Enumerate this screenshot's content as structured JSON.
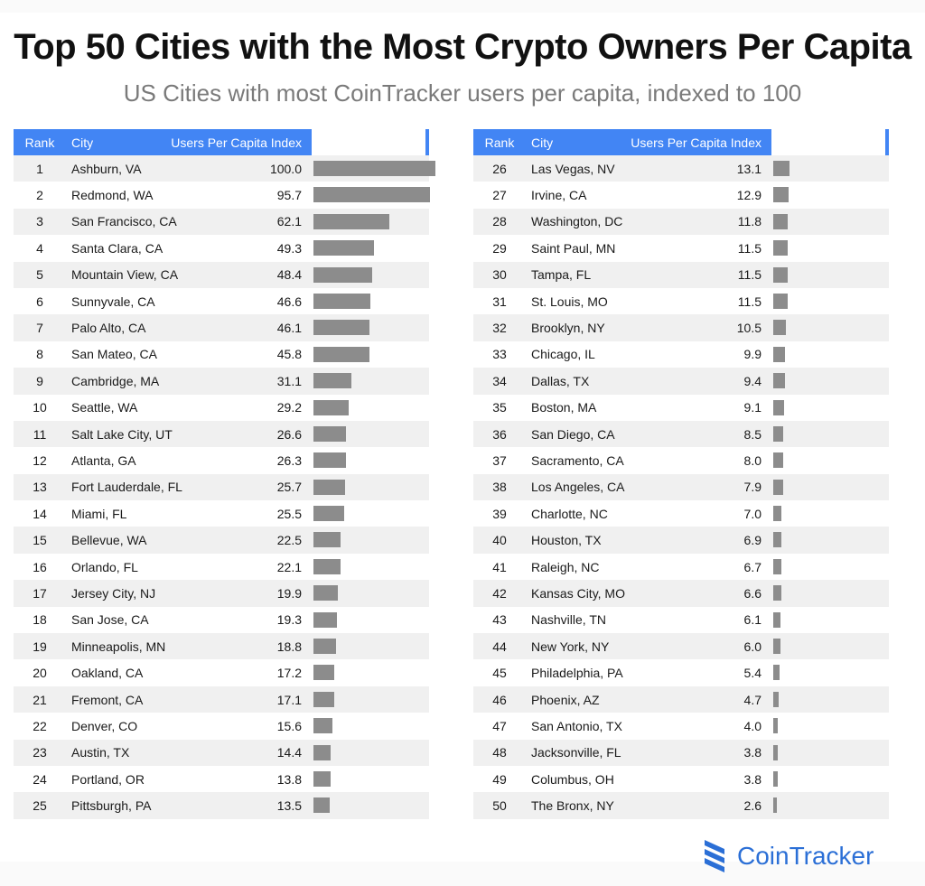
{
  "title": "Top 50 Cities with the Most Crypto Owners Per Capita",
  "subtitle": "US Cities with most CoinTracker users per capita, indexed to 100",
  "headers": {
    "rank": "Rank",
    "city": "City",
    "value": "Users Per Capita Index"
  },
  "brand": {
    "name": "CoinTracker",
    "accent": "#4285f4",
    "logo_color": "#2b6fd6",
    "bar_color": "#8c8c8c"
  },
  "chart_data": {
    "type": "table",
    "max_value": 100,
    "columns": [
      "Rank",
      "City",
      "Users Per Capita Index"
    ],
    "rows": [
      {
        "rank": "1",
        "city": "Ashburn, VA",
        "value": "100.0"
      },
      {
        "rank": "2",
        "city": "Redmond, WA",
        "value": "95.7"
      },
      {
        "rank": "3",
        "city": "San Francisco, CA",
        "value": "62.1"
      },
      {
        "rank": "4",
        "city": "Santa Clara, CA",
        "value": "49.3"
      },
      {
        "rank": "5",
        "city": "Mountain View, CA",
        "value": "48.4"
      },
      {
        "rank": "6",
        "city": "Sunnyvale, CA",
        "value": "46.6"
      },
      {
        "rank": "7",
        "city": "Palo Alto, CA",
        "value": "46.1"
      },
      {
        "rank": "8",
        "city": "San Mateo, CA",
        "value": "45.8"
      },
      {
        "rank": "9",
        "city": "Cambridge, MA",
        "value": "31.1"
      },
      {
        "rank": "10",
        "city": "Seattle, WA",
        "value": "29.2"
      },
      {
        "rank": "11",
        "city": "Salt Lake City, UT",
        "value": "26.6"
      },
      {
        "rank": "12",
        "city": "Atlanta, GA",
        "value": "26.3"
      },
      {
        "rank": "13",
        "city": "Fort Lauderdale, FL",
        "value": "25.7"
      },
      {
        "rank": "14",
        "city": "Miami, FL",
        "value": "25.5"
      },
      {
        "rank": "15",
        "city": "Bellevue, WA",
        "value": "22.5"
      },
      {
        "rank": "16",
        "city": "Orlando, FL",
        "value": "22.1"
      },
      {
        "rank": "17",
        "city": "Jersey City, NJ",
        "value": "19.9"
      },
      {
        "rank": "18",
        "city": "San Jose, CA",
        "value": "19.3"
      },
      {
        "rank": "19",
        "city": "Minneapolis, MN",
        "value": "18.8"
      },
      {
        "rank": "20",
        "city": "Oakland, CA",
        "value": "17.2"
      },
      {
        "rank": "21",
        "city": "Fremont, CA",
        "value": "17.1"
      },
      {
        "rank": "22",
        "city": "Denver, CO",
        "value": "15.6"
      },
      {
        "rank": "23",
        "city": "Austin, TX",
        "value": "14.4"
      },
      {
        "rank": "24",
        "city": "Portland, OR",
        "value": "13.8"
      },
      {
        "rank": "25",
        "city": "Pittsburgh, PA",
        "value": "13.5"
      },
      {
        "rank": "26",
        "city": "Las Vegas, NV",
        "value": "13.1"
      },
      {
        "rank": "27",
        "city": "Irvine, CA",
        "value": "12.9"
      },
      {
        "rank": "28",
        "city": "Washington, DC",
        "value": "11.8"
      },
      {
        "rank": "29",
        "city": "Saint Paul, MN",
        "value": "11.5"
      },
      {
        "rank": "30",
        "city": "Tampa, FL",
        "value": "11.5"
      },
      {
        "rank": "31",
        "city": "St. Louis, MO",
        "value": "11.5"
      },
      {
        "rank": "32",
        "city": "Brooklyn, NY",
        "value": "10.5"
      },
      {
        "rank": "33",
        "city": "Chicago, IL",
        "value": "9.9"
      },
      {
        "rank": "34",
        "city": "Dallas, TX",
        "value": "9.4"
      },
      {
        "rank": "35",
        "city": "Boston, MA",
        "value": "9.1"
      },
      {
        "rank": "36",
        "city": "San Diego, CA",
        "value": "8.5"
      },
      {
        "rank": "37",
        "city": "Sacramento, CA",
        "value": "8.0"
      },
      {
        "rank": "38",
        "city": "Los Angeles, CA",
        "value": "7.9"
      },
      {
        "rank": "39",
        "city": "Charlotte, NC",
        "value": "7.0"
      },
      {
        "rank": "40",
        "city": "Houston, TX",
        "value": "6.9"
      },
      {
        "rank": "41",
        "city": "Raleigh, NC",
        "value": "6.7"
      },
      {
        "rank": "42",
        "city": "Kansas City, MO",
        "value": "6.6"
      },
      {
        "rank": "43",
        "city": "Nashville, TN",
        "value": "6.1"
      },
      {
        "rank": "44",
        "city": "New York, NY",
        "value": "6.0"
      },
      {
        "rank": "45",
        "city": "Philadelphia, PA",
        "value": "5.4"
      },
      {
        "rank": "46",
        "city": "Phoenix, AZ",
        "value": "4.7"
      },
      {
        "rank": "47",
        "city": "San Antonio, TX",
        "value": "4.0"
      },
      {
        "rank": "48",
        "city": "Jacksonville, FL",
        "value": "3.8"
      },
      {
        "rank": "49",
        "city": "Columbus, OH",
        "value": "3.8"
      },
      {
        "rank": "50",
        "city": "The Bronx, NY",
        "value": "2.6"
      }
    ]
  }
}
